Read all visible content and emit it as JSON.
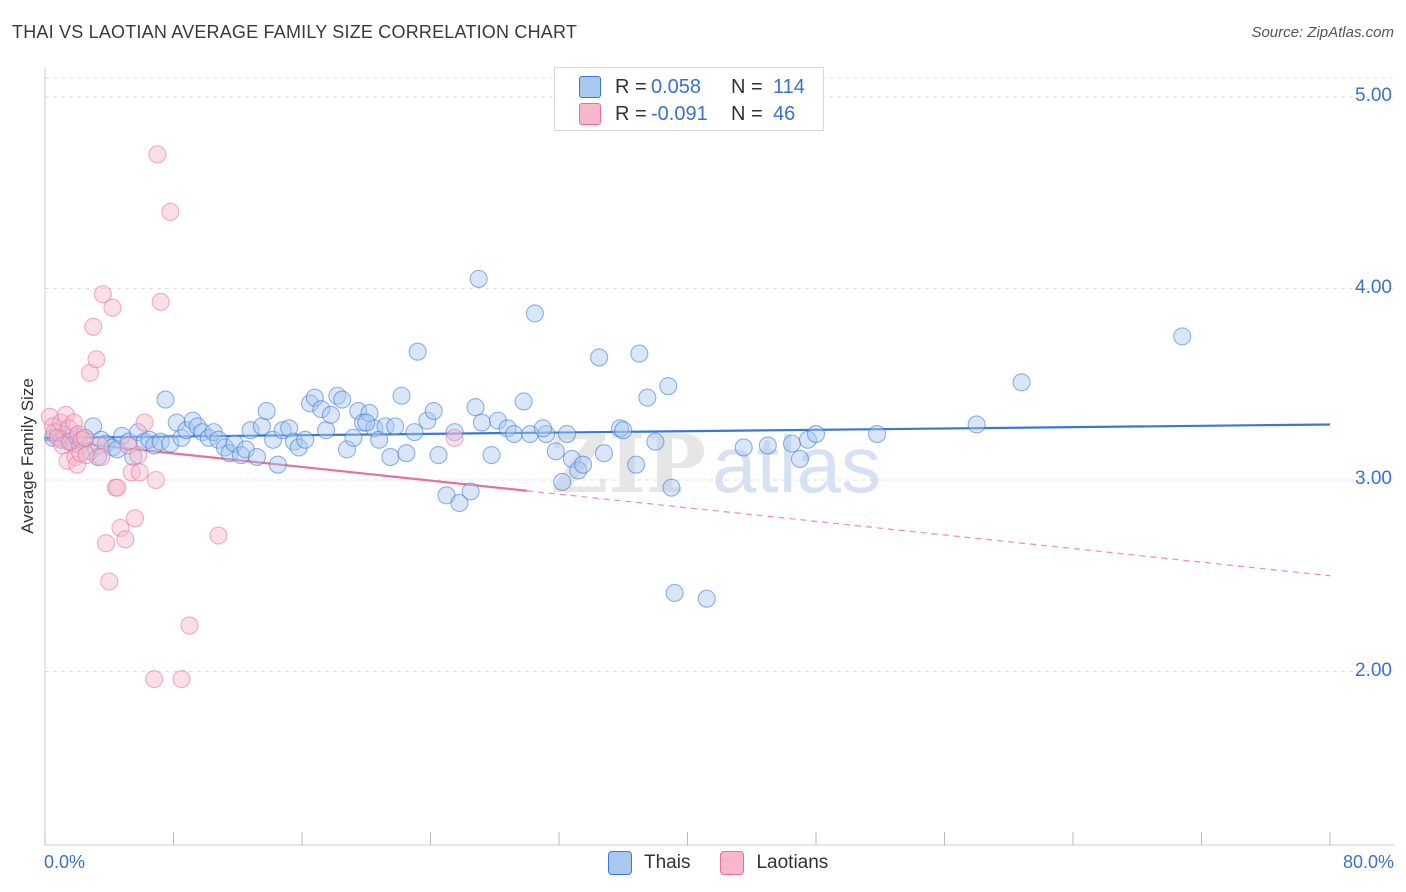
{
  "header": {
    "title": "THAI VS LAOTIAN AVERAGE FAMILY SIZE CORRELATION CHART",
    "source": "Source: ZipAtlas.com"
  },
  "watermark": "ZIPatlas",
  "legend_top": {
    "rows": [
      {
        "r_label": "R =",
        "r_value": "0.058",
        "n_label": "N =",
        "n_value": "114",
        "color": "#a8c8f0"
      },
      {
        "r_label": "R =",
        "r_value": "-0.091",
        "n_label": "N =",
        "n_value": "46",
        "color": "#f6b8ca"
      }
    ]
  },
  "legend_bottom": {
    "items": [
      {
        "label": "Thais",
        "color": "#a8c8f0"
      },
      {
        "label": "Laotians",
        "color": "#f6b8ca"
      }
    ]
  },
  "chart_data": {
    "type": "scatter",
    "title": "THAI VS LAOTIAN AVERAGE FAMILY SIZE CORRELATION CHART",
    "xlabel": "",
    "ylabel": "Average Family Size",
    "xlim": [
      0,
      80
    ],
    "ylim": [
      1.0,
      5.1
    ],
    "x_tick_labels": [
      "0.0%",
      "80.0%"
    ],
    "y_ticks": [
      2.0,
      3.0,
      4.0,
      5.0
    ],
    "y_tick_labels": [
      "2.00",
      "3.00",
      "4.00",
      "5.00"
    ],
    "grid": true,
    "series": [
      {
        "name": "Thais",
        "color": "#3a78d4",
        "fill": "#a8c8f0",
        "trend": {
          "x0": 0,
          "y0": 3.22,
          "x1": 80,
          "y1": 3.29,
          "solid_to": 80
        },
        "points": [
          [
            0.5,
            3.22
          ],
          [
            0.8,
            3.25
          ],
          [
            1.0,
            3.21
          ],
          [
            1.2,
            3.24
          ],
          [
            1.5,
            3.2
          ],
          [
            1.8,
            3.19
          ],
          [
            2.0,
            3.23
          ],
          [
            2.2,
            3.18
          ],
          [
            2.5,
            3.22
          ],
          [
            2.8,
            3.15
          ],
          [
            3.0,
            3.28
          ],
          [
            3.3,
            3.12
          ],
          [
            3.5,
            3.21
          ],
          [
            3.8,
            3.19
          ],
          [
            4.2,
            3.17
          ],
          [
            4.5,
            3.16
          ],
          [
            4.8,
            3.23
          ],
          [
            5.2,
            3.2
          ],
          [
            5.5,
            3.12
          ],
          [
            5.8,
            3.25
          ],
          [
            6.2,
            3.2
          ],
          [
            6.5,
            3.21
          ],
          [
            6.8,
            3.18
          ],
          [
            7.2,
            3.2
          ],
          [
            7.5,
            3.42
          ],
          [
            7.8,
            3.19
          ],
          [
            8.2,
            3.3
          ],
          [
            8.5,
            3.22
          ],
          [
            8.8,
            3.26
          ],
          [
            9.2,
            3.31
          ],
          [
            9.5,
            3.28
          ],
          [
            9.8,
            3.25
          ],
          [
            10.2,
            3.22
          ],
          [
            10.5,
            3.25
          ],
          [
            10.8,
            3.21
          ],
          [
            11.2,
            3.17
          ],
          [
            11.5,
            3.14
          ],
          [
            11.8,
            3.19
          ],
          [
            12.2,
            3.13
          ],
          [
            12.5,
            3.16
          ],
          [
            12.8,
            3.26
          ],
          [
            13.2,
            3.12
          ],
          [
            13.5,
            3.28
          ],
          [
            13.8,
            3.36
          ],
          [
            14.2,
            3.21
          ],
          [
            14.5,
            3.08
          ],
          [
            14.8,
            3.26
          ],
          [
            15.2,
            3.27
          ],
          [
            15.5,
            3.2
          ],
          [
            15.8,
            3.17
          ],
          [
            16.2,
            3.21
          ],
          [
            16.5,
            3.4
          ],
          [
            16.8,
            3.43
          ],
          [
            17.2,
            3.37
          ],
          [
            17.5,
            3.26
          ],
          [
            17.8,
            3.34
          ],
          [
            18.2,
            3.44
          ],
          [
            18.5,
            3.42
          ],
          [
            18.8,
            3.16
          ],
          [
            19.2,
            3.22
          ],
          [
            19.5,
            3.36
          ],
          [
            19.8,
            3.3
          ],
          [
            20.2,
            3.35
          ],
          [
            20.5,
            3.27
          ],
          [
            20.8,
            3.21
          ],
          [
            21.2,
            3.28
          ],
          [
            21.5,
            3.12
          ],
          [
            21.8,
            3.28
          ],
          [
            22.2,
            3.44
          ],
          [
            22.5,
            3.14
          ],
          [
            23.0,
            3.25
          ],
          [
            23.2,
            3.67
          ],
          [
            23.8,
            3.31
          ],
          [
            24.2,
            3.36
          ],
          [
            24.5,
            3.13
          ],
          [
            25.0,
            2.92
          ],
          [
            25.5,
            3.25
          ],
          [
            25.8,
            2.88
          ],
          [
            26.5,
            2.94
          ],
          [
            26.8,
            3.38
          ],
          [
            27.2,
            3.3
          ],
          [
            27.8,
            3.13
          ],
          [
            28.2,
            3.31
          ],
          [
            28.8,
            3.27
          ],
          [
            29.2,
            3.24
          ],
          [
            29.8,
            3.41
          ],
          [
            30.2,
            3.24
          ],
          [
            31.2,
            3.24
          ],
          [
            31.8,
            3.15
          ],
          [
            32.2,
            2.99
          ],
          [
            32.5,
            3.24
          ],
          [
            32.8,
            3.11
          ],
          [
            33.2,
            3.05
          ],
          [
            33.5,
            3.08
          ],
          [
            34.5,
            3.64
          ],
          [
            34.8,
            3.14
          ],
          [
            35.8,
            3.27
          ],
          [
            36.0,
            3.26
          ],
          [
            36.8,
            3.08
          ],
          [
            37.0,
            3.66
          ],
          [
            37.5,
            3.43
          ],
          [
            38.0,
            3.2
          ],
          [
            39.0,
            2.96
          ],
          [
            38.8,
            3.49
          ],
          [
            39.2,
            2.41
          ],
          [
            41.2,
            2.38
          ],
          [
            43.5,
            3.17
          ],
          [
            45.0,
            3.18
          ],
          [
            46.5,
            3.19
          ],
          [
            47.0,
            3.11
          ],
          [
            47.5,
            3.21
          ],
          [
            48.0,
            3.24
          ],
          [
            51.8,
            3.24
          ],
          [
            58.0,
            3.29
          ],
          [
            60.8,
            3.51
          ],
          [
            70.8,
            3.75
          ],
          [
            27.0,
            4.05
          ],
          [
            30.5,
            3.87
          ],
          [
            20.0,
            3.3
          ],
          [
            31.0,
            3.27
          ]
        ]
      },
      {
        "name": "Laotians",
        "color": "#e8709a",
        "fill": "#f6b8ca",
        "trend": {
          "x0": 0,
          "y0": 3.21,
          "x1": 80,
          "y1": 2.5,
          "solid_to": 30
        },
        "points": [
          [
            0.3,
            3.33
          ],
          [
            0.5,
            3.28
          ],
          [
            0.6,
            3.25
          ],
          [
            0.8,
            3.22
          ],
          [
            1.0,
            3.3
          ],
          [
            1.1,
            3.18
          ],
          [
            1.3,
            3.34
          ],
          [
            1.4,
            3.1
          ],
          [
            1.5,
            3.27
          ],
          [
            1.6,
            3.2
          ],
          [
            1.8,
            3.3
          ],
          [
            1.9,
            3.12
          ],
          [
            2.0,
            3.08
          ],
          [
            2.1,
            3.24
          ],
          [
            2.2,
            3.14
          ],
          [
            2.3,
            3.21
          ],
          [
            2.5,
            3.22
          ],
          [
            2.6,
            3.13
          ],
          [
            2.8,
            3.56
          ],
          [
            3.0,
            3.8
          ],
          [
            3.2,
            3.63
          ],
          [
            3.4,
            3.18
          ],
          [
            3.5,
            3.12
          ],
          [
            3.6,
            3.97
          ],
          [
            3.8,
            2.67
          ],
          [
            4.0,
            2.47
          ],
          [
            4.2,
            3.9
          ],
          [
            4.4,
            2.96
          ],
          [
            4.5,
            2.96
          ],
          [
            4.7,
            2.75
          ],
          [
            5.0,
            2.69
          ],
          [
            5.2,
            3.18
          ],
          [
            5.4,
            3.04
          ],
          [
            5.6,
            2.8
          ],
          [
            5.8,
            3.13
          ],
          [
            5.9,
            3.04
          ],
          [
            6.2,
            3.3
          ],
          [
            6.8,
            1.96
          ],
          [
            6.9,
            3.0
          ],
          [
            7.0,
            4.7
          ],
          [
            7.2,
            3.93
          ],
          [
            7.8,
            4.4
          ],
          [
            8.5,
            1.96
          ],
          [
            9.0,
            2.24
          ],
          [
            10.8,
            2.71
          ],
          [
            25.5,
            3.22
          ]
        ]
      }
    ]
  }
}
